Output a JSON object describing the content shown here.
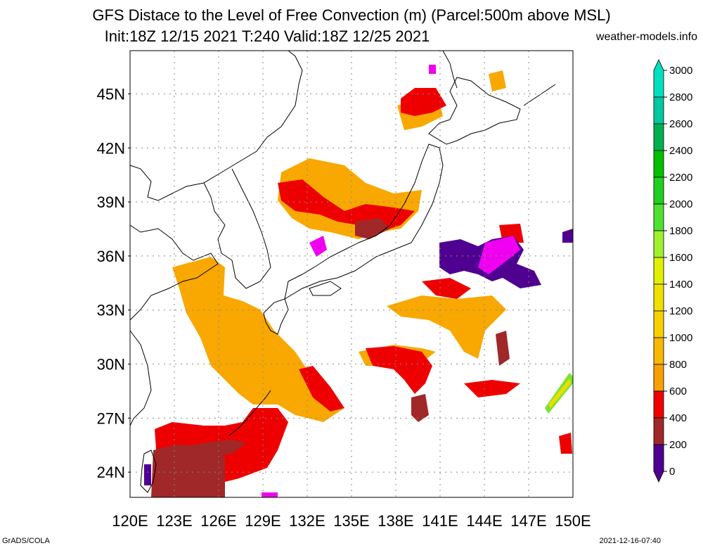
{
  "header": {
    "title_line1": "GFS Distace to the Level of Free Convection (m) (Parcel:500m above MSL)",
    "title_line2": "Init:18Z 12/15 2021 T:240 Valid:18Z 12/25 2021",
    "site": "weather-models.info"
  },
  "footer": {
    "left": "GrADS/COLA",
    "right": "2021-12-16-07:40"
  },
  "map": {
    "lon_labels": [
      "120E",
      "123E",
      "126E",
      "129E",
      "132E",
      "135E",
      "138E",
      "141E",
      "144E",
      "147E",
      "150E"
    ],
    "lat_labels": [
      "45N",
      "42N",
      "39N",
      "36N",
      "33N",
      "30N",
      "27N",
      "24N"
    ],
    "lat_values": [
      45,
      42,
      39,
      36,
      33,
      30,
      27,
      24
    ],
    "lon_values": [
      120,
      123,
      126,
      129,
      132,
      135,
      138,
      141,
      144,
      147,
      150
    ]
  },
  "colorbar": {
    "labels": [
      "3000",
      "2800",
      "2600",
      "2400",
      "2200",
      "2000",
      "1800",
      "1600",
      "1400",
      "1200",
      "1000",
      "800",
      "600",
      "400",
      "200",
      "0"
    ],
    "colors": [
      "#00e0c0",
      "#00c8a0",
      "#00b050",
      "#00c000",
      "#20d020",
      "#50e030",
      "#a0f030",
      "#e0f000",
      "#f0e000",
      "#f8d000",
      "#f8b800",
      "#f8a000",
      "#f00000",
      "#a02828",
      "#f000f0",
      "#500090"
    ]
  },
  "fields": [
    {
      "name": "yellow-sea-china-orange",
      "color": "#f8a800"
    },
    {
      "name": "southern-red-band",
      "color": "#ee0000"
    },
    {
      "name": "taiwan-brown",
      "color": "#a02828"
    },
    {
      "name": "east-pacific-purple",
      "color": "#500090"
    },
    {
      "name": "magenta-patches",
      "color": "#f000f0"
    }
  ]
}
